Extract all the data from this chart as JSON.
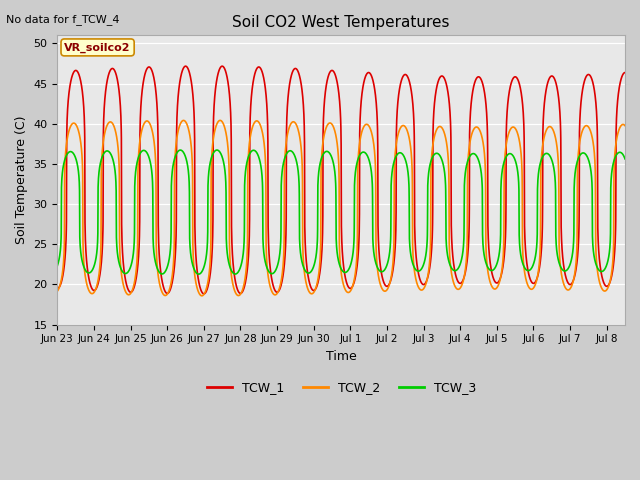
{
  "title": "Soil CO2 West Temperatures",
  "no_data_text": "No data for f_TCW_4",
  "annotation_text": "VR_soilco2",
  "xlabel": "Time",
  "ylabel": "Soil Temperature (C)",
  "ylim": [
    15,
    51
  ],
  "yticks": [
    15,
    20,
    25,
    30,
    35,
    40,
    45,
    50
  ],
  "fig_bg": "#cccccc",
  "plot_bg": "#e8e8e8",
  "series": {
    "TCW_1": {
      "color": "#dd0000",
      "lw": 1.2
    },
    "TCW_2": {
      "color": "#ff8800",
      "lw": 1.2
    },
    "TCW_3": {
      "color": "#00cc00",
      "lw": 1.2
    }
  },
  "x_tick_labels": [
    "Jun 23",
    "Jun 24",
    "Jun 25",
    "Jun 26",
    "Jun 27",
    "Jun 28",
    "Jun 29",
    "Jun 30",
    "Jul 1",
    "Jul 2",
    "Jul 3",
    "Jul 4",
    "Jul 5",
    "Jul 6",
    "Jul 7",
    "Jul 8"
  ],
  "num_days": 15.5,
  "samples_per_day": 288,
  "tcw1_mid": 33.0,
  "tcw1_amp_base": 13.5,
  "tcw2_mid": 29.5,
  "tcw2_amp_base": 10.5,
  "tcw3_mid": 29.0,
  "tcw3_amp_base": 7.5,
  "sharpness": 4.0
}
